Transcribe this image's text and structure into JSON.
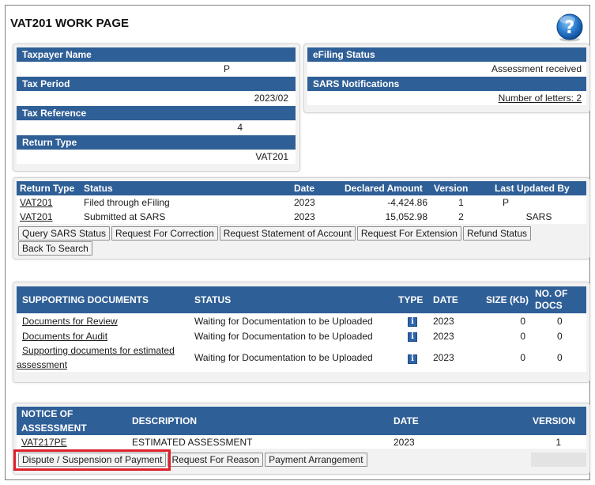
{
  "page": {
    "title": "VAT201 WORK PAGE",
    "help_icon": "help-question-icon"
  },
  "taxpayer": {
    "name_label": "Taxpayer Name",
    "name_value": "P",
    "period_label": "Tax Period",
    "period_value": "2023/02",
    "reference_label": "Tax Reference",
    "reference_value": "4",
    "return_type_label": "Return Type",
    "return_type_value": "VAT201"
  },
  "efiling": {
    "status_label": "eFiling Status",
    "status_value": "Assessment received",
    "notifications_label": "SARS Notifications",
    "letters_link": "Number of letters: 2"
  },
  "returns": {
    "headers": [
      "Return Type",
      "Status",
      "Date",
      "Declared Amount",
      "Version",
      "Last Updated By"
    ],
    "rows": [
      {
        "type": "VAT201",
        "status": "Filed through eFiling",
        "date": "2023",
        "amount": "-4,424.86",
        "version": "1",
        "updated_by": "P"
      },
      {
        "type": "VAT201",
        "status": "Submitted at SARS",
        "date": "2023",
        "amount": "15,052.98",
        "version": "2",
        "updated_by": "SARS"
      }
    ],
    "buttons": {
      "query": "Query SARS Status",
      "correction": "Request For Correction",
      "statement": "Request Statement of Account",
      "extension": "Request For Extension",
      "refund": "Refund Status",
      "back": "Back To Search"
    }
  },
  "supporting": {
    "headers": {
      "docs": "SUPPORTING DOCUMENTS",
      "status": "STATUS",
      "type": "TYPE",
      "date": "DATE",
      "size": "SIZE (Kb)",
      "no_line1": "NO. OF",
      "no_line2": "DOCS"
    },
    "rows": [
      {
        "name": "Documents for Review",
        "status": "Waiting for Documentation to be Uploaded",
        "type_icon": "info-icon",
        "date": "2023",
        "size": "0",
        "docs": "0"
      },
      {
        "name": "Documents for Audit",
        "status": "Waiting for Documentation to be Uploaded",
        "type_icon": "info-icon",
        "date": "2023",
        "size": "0",
        "docs": "0"
      },
      {
        "name_line1": "Supporting documents for estimated",
        "name_line2": "assessment",
        "status": "Waiting for Documentation to be Uploaded",
        "type_icon": "info-icon",
        "date": "2023",
        "size": "0",
        "docs": "0"
      }
    ]
  },
  "notice": {
    "headers": {
      "notice_line1": "NOTICE OF",
      "notice_line2": "ASSESSMENT",
      "description": "DESCRIPTION",
      "date": "DATE",
      "version": "VERSION"
    },
    "row": {
      "notice": "VAT217PE",
      "description": "ESTIMATED ASSESSMENT",
      "date": "2023",
      "version": "1"
    },
    "buttons": {
      "dispute": "Dispute / Suspension of Payment",
      "reason": "Request For Reason",
      "arrangement": "Payment Arrangement"
    }
  },
  "colors": {
    "header_blue": "#2f5f97",
    "highlight_red": "#e0202b",
    "panel_grey": "#f2f2f2"
  }
}
